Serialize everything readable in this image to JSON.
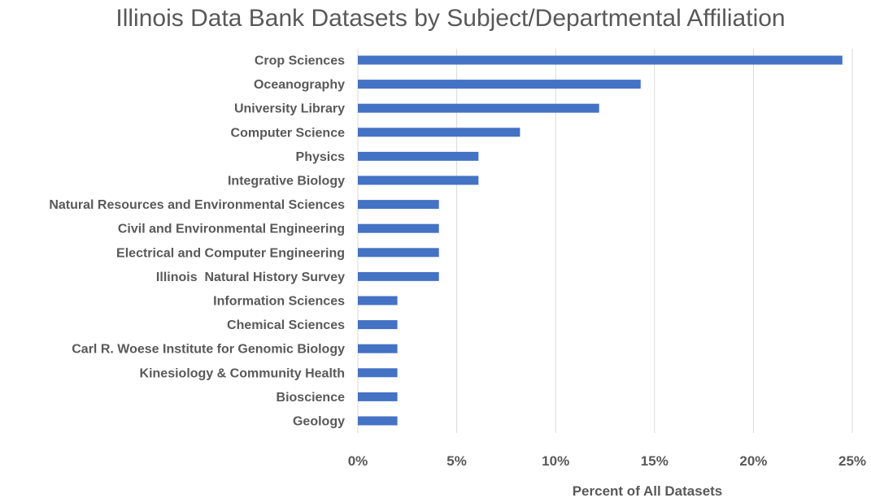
{
  "chart_data": {
    "type": "bar",
    "orientation": "horizontal",
    "title": "Illinois Data Bank Datasets by Subject/Departmental Affiliation",
    "xlabel": "Percent of All Datasets",
    "ylabel": "",
    "xlim": [
      0,
      25
    ],
    "x_ticks": [
      "0%",
      "5%",
      "10%",
      "15%",
      "20%",
      "25%"
    ],
    "grid": true,
    "legend": "none",
    "bar_color": "#4472C4",
    "categories": [
      "Crop Sciences",
      "Oceanography",
      "University Library",
      "Computer Science",
      "Physics",
      "Integrative Biology",
      "Natural Resources and Environmental Sciences",
      "Civil and Environmental Engineering",
      "Electrical and Computer Engineering",
      "Illinois  Natural History Survey",
      "Information Sciences",
      "Chemical Sciences",
      "Carl R. Woese Institute for Genomic Biology",
      "Kinesiology & Community Health",
      "Bioscience",
      "Geology"
    ],
    "values": [
      24.5,
      14.3,
      12.2,
      8.2,
      6.1,
      6.1,
      4.1,
      4.1,
      4.1,
      4.1,
      2.0,
      2.0,
      2.0,
      2.0,
      2.0,
      2.0
    ]
  }
}
